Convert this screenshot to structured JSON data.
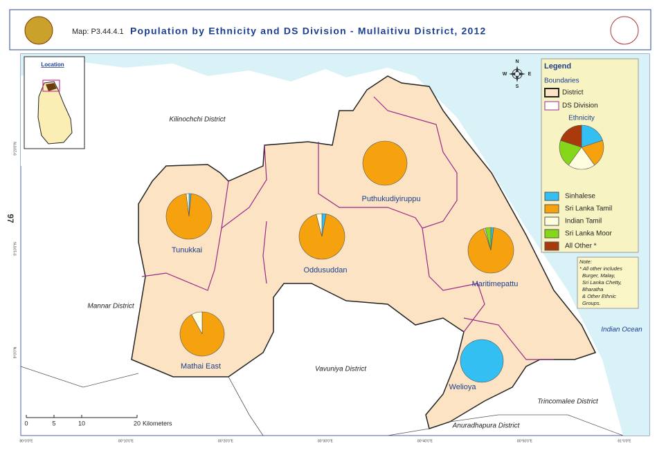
{
  "header": {
    "map_id": "Map: P3.44.4.1",
    "title": "Population by Ethnicity and DS Division - Mullaitivu District, 2012"
  },
  "page_number": "97",
  "location_label": "Location",
  "compass": [
    "N",
    "E",
    "S",
    "W"
  ],
  "legend": {
    "title": "Legend",
    "boundaries_title": "Boundaries",
    "boundaries": [
      "District",
      "DS Division"
    ],
    "ethnicity_title": "Ethnicity",
    "ethnicities": [
      {
        "name": "Sinhalese",
        "color": "#33bff2"
      },
      {
        "name": "Sri Lanka Tamil",
        "color": "#f6a20f"
      },
      {
        "name": "Indian Tamil",
        "color": "#fffde0"
      },
      {
        "name": "Sri Lanka Moor",
        "color": "#86d61a"
      },
      {
        "name": "All Other *",
        "color": "#a83a0c"
      }
    ],
    "note": [
      "Note:",
      "* All other includes",
      "Burger, Malay,",
      "Sri Lanka Chetty,",
      "Bharatha",
      "& Other Ethnic",
      "Groups."
    ]
  },
  "divisions": [
    {
      "name": "Tunukkai",
      "values": [
        1.5,
        96.5,
        2,
        0,
        0
      ]
    },
    {
      "name": "Puthukudiyiruppu",
      "values": [
        0,
        100,
        0,
        0,
        0
      ]
    },
    {
      "name": "Oddusuddan",
      "values": [
        3,
        93,
        4,
        0,
        0
      ]
    },
    {
      "name": "Maritimepattu",
      "values": [
        2,
        93,
        1,
        4,
        0
      ]
    },
    {
      "name": "Mathai East",
      "values": [
        0,
        92,
        8,
        0,
        0
      ]
    },
    {
      "name": "Welioya",
      "values": [
        100,
        0,
        0,
        0,
        0
      ]
    }
  ],
  "regions": [
    "Kilinochchi District",
    "Mannar District",
    "Vavuniya District",
    "Trincomalee District",
    "Anuradhapura District",
    "Indian Ocean"
  ],
  "scale": {
    "ticks": [
      0,
      5,
      10,
      20
    ],
    "unit": "Kilometers"
  },
  "longitudes": [
    "80°0'0\"E",
    "80°10'0\"E",
    "80°20'0\"E",
    "80°30'0\"E",
    "80°40'0\"E",
    "80°50'0\"E",
    "81°0'0\"E"
  ],
  "latitudes": [
    "9°20'0\"N",
    "9°10'0\"N",
    "9°0'0\"N"
  ]
}
